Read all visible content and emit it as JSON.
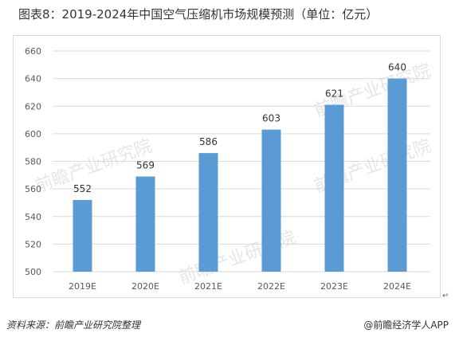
{
  "title": "图表8：2019-2024年中国空气压缩机市场规模预测（单位：亿元）",
  "source": "资料来源：前瞻产业研究院整理",
  "credit": "@前瞻经济学人APP",
  "watermark": "前瞻产业研究院",
  "colors": {
    "bar": "#5b9bd5",
    "grid": "#d9d9d9",
    "text": "#333333",
    "tick": "#595959"
  },
  "chart_data": {
    "type": "bar",
    "categories": [
      "2019E",
      "2020E",
      "2021E",
      "2022E",
      "2023E",
      "2024E"
    ],
    "values": [
      552,
      569,
      586,
      603,
      621,
      640
    ],
    "data_labels": [
      "552",
      "569",
      "586",
      "603",
      "621",
      "640"
    ],
    "ylim": [
      500,
      660
    ],
    "yticks": [
      500,
      520,
      540,
      560,
      580,
      600,
      620,
      640,
      660
    ],
    "ytick_labels": [
      "500",
      "520",
      "540",
      "560",
      "580",
      "600",
      "620",
      "640",
      "660"
    ],
    "grid": true,
    "legend": "none"
  }
}
